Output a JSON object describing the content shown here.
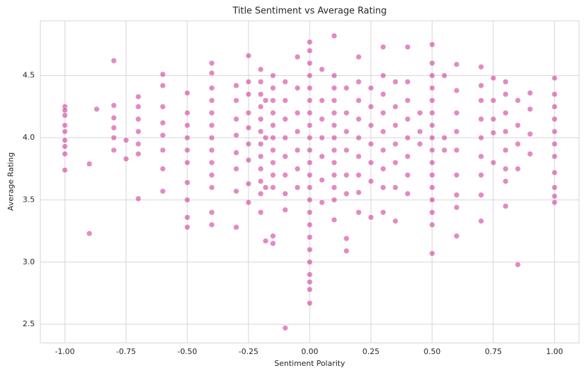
{
  "chart_data": {
    "type": "scatter",
    "title": "Title Sentiment vs Average Rating",
    "x_label": "Sentiment Polarity",
    "y_label": "Average Rating",
    "color": "#c71585",
    "grid": true,
    "xlim": [
      -1.1,
      1.1
    ],
    "ylim": [
      2.35,
      4.94
    ],
    "xticks": [
      {
        "value": -1,
        "label": "-1.00"
      },
      {
        "value": -0.75,
        "label": "-0.75"
      },
      {
        "value": -0.5,
        "label": "-0.50"
      },
      {
        "value": -0.25,
        "label": "-0.25"
      },
      {
        "value": 0,
        "label": "0.00"
      },
      {
        "value": 0.25,
        "label": "0.25"
      },
      {
        "value": 0.5,
        "label": "0.50"
      },
      {
        "value": 0.75,
        "label": "0.75"
      },
      {
        "value": 1,
        "label": "1.00"
      }
    ],
    "yticks": [
      2.5,
      {
        "value": 3,
        "label": "3.0"
      },
      3.5,
      {
        "value": 4,
        "label": "4.0"
      },
      4.5
    ],
    "x": [
      -1,
      -1,
      -1,
      -1,
      -1,
      -1,
      -1,
      -1,
      -1,
      -0.9,
      -0.9,
      -0.87,
      -0.8,
      -0.8,
      -0.8,
      -0.8,
      -0.8,
      -0.8,
      -0.75,
      -0.75,
      -0.7,
      -0.7,
      -0.7,
      -0.7,
      -0.7,
      -0.7,
      -0.7,
      -0.6,
      -0.6,
      -0.6,
      -0.6,
      -0.6,
      -0.6,
      -0.6,
      -0.6,
      -0.5,
      -0.5,
      -0.5,
      -0.5,
      -0.5,
      -0.5,
      -0.5,
      -0.5,
      -0.5,
      -0.5,
      -0.4,
      -0.4,
      -0.4,
      -0.4,
      -0.4,
      -0.4,
      -0.4,
      -0.4,
      -0.4,
      -0.4,
      -0.4,
      -0.4,
      -0.4,
      -0.3,
      -0.3,
      -0.3,
      -0.3,
      -0.3,
      -0.3,
      -0.3,
      -0.3,
      -0.25,
      -0.25,
      -0.25,
      -0.25,
      -0.25,
      -0.25,
      -0.25,
      -0.25,
      -0.25,
      -0.2,
      -0.2,
      -0.2,
      -0.2,
      -0.2,
      -0.2,
      -0.2,
      -0.2,
      -0.2,
      -0.2,
      -0.2,
      -0.2,
      -0.18,
      -0.18,
      -0.18,
      -0.18,
      -0.15,
      -0.15,
      -0.15,
      -0.15,
      -0.15,
      -0.15,
      -0.15,
      -0.15,
      -0.15,
      -0.15,
      -0.15,
      -0.15,
      -0.1,
      -0.1,
      -0.1,
      -0.1,
      -0.1,
      -0.1,
      -0.1,
      -0.1,
      -0.1,
      -0.05,
      -0.05,
      -0.05,
      -0.05,
      -0.05,
      -0.05,
      -0.05,
      0,
      0,
      0,
      0,
      0,
      0,
      0,
      0,
      0,
      0,
      0,
      0,
      0,
      0,
      0,
      0,
      0,
      0,
      0,
      0,
      0,
      0,
      0,
      0.05,
      0.05,
      0.05,
      0.05,
      0.05,
      0.05,
      0.05,
      0.1,
      0.1,
      0.1,
      0.1,
      0.1,
      0.1,
      0.1,
      0.1,
      0.1,
      0.1,
      0.1,
      0.1,
      0.1,
      0.15,
      0.15,
      0.15,
      0.15,
      0.15,
      0.15,
      0.15,
      0.15,
      0.2,
      0.2,
      0.2,
      0.2,
      0.2,
      0.2,
      0.2,
      0.2,
      0.2,
      0.25,
      0.25,
      0.25,
      0.25,
      0.25,
      0.25,
      0.25,
      0.3,
      0.3,
      0.3,
      0.3,
      0.3,
      0.3,
      0.3,
      0.3,
      0.3,
      0.35,
      0.35,
      0.35,
      0.35,
      0.35,
      0.35,
      0.35,
      0.4,
      0.4,
      0.4,
      0.4,
      0.4,
      0.4,
      0.4,
      0.4,
      0.45,
      0.45,
      0.45,
      0.5,
      0.5,
      0.5,
      0.5,
      0.5,
      0.5,
      0.5,
      0.5,
      0.5,
      0.5,
      0.5,
      0.5,
      0.5,
      0.5,
      0.5,
      0.5,
      0.55,
      0.55,
      0.55,
      0.6,
      0.6,
      0.6,
      0.6,
      0.6,
      0.6,
      0.6,
      0.6,
      0.6,
      0.7,
      0.7,
      0.7,
      0.7,
      0.7,
      0.7,
      0.7,
      0.7,
      0.7,
      0.75,
      0.75,
      0.75,
      0.75,
      0.75,
      0.8,
      0.8,
      0.8,
      0.8,
      0.8,
      0.8,
      0.8,
      0.8,
      0.85,
      0.85,
      0.85,
      0.85,
      0.85,
      0.9,
      0.9,
      0.9,
      0.9,
      1,
      1,
      1,
      1,
      1,
      1,
      1,
      1,
      1,
      1,
      1
    ],
    "values": [
      4.25,
      4.22,
      4.18,
      4.1,
      4.05,
      3.98,
      3.93,
      3.87,
      3.74,
      3.79,
      3.23,
      4.23,
      4.62,
      4.26,
      4.16,
      4.08,
      4.0,
      3.9,
      3.98,
      3.83,
      4.33,
      4.25,
      4.15,
      4.05,
      3.95,
      3.87,
      3.51,
      4.51,
      4.42,
      4.25,
      4.12,
      4.02,
      3.9,
      3.75,
      3.57,
      4.36,
      4.2,
      4.1,
      4.0,
      3.9,
      3.8,
      3.64,
      3.5,
      3.36,
      3.28,
      4.6,
      4.52,
      4.4,
      4.3,
      4.2,
      4.1,
      4.0,
      3.9,
      3.8,
      3.7,
      3.6,
      3.4,
      3.3,
      4.42,
      4.3,
      4.15,
      4.02,
      3.88,
      3.75,
      3.57,
      3.28,
      4.66,
      4.45,
      4.35,
      4.2,
      4.08,
      3.95,
      3.82,
      3.63,
      3.48,
      4.55,
      4.45,
      4.35,
      4.25,
      4.15,
      4.05,
      3.95,
      3.85,
      3.75,
      3.65,
      3.55,
      3.4,
      3.17,
      3.6,
      4.3,
      4.0,
      4.5,
      4.4,
      4.3,
      4.2,
      4.1,
      4.0,
      3.9,
      3.8,
      3.7,
      3.6,
      3.15,
      3.21,
      4.45,
      4.3,
      4.15,
      4.0,
      3.85,
      3.7,
      3.55,
      3.42,
      2.47,
      4.65,
      4.4,
      4.2,
      4.05,
      3.9,
      3.75,
      3.6,
      4.77,
      4.7,
      4.6,
      4.5,
      4.4,
      4.3,
      4.2,
      4.1,
      4.0,
      3.9,
      3.8,
      3.7,
      3.6,
      3.5,
      3.4,
      3.3,
      3.2,
      3.1,
      3.0,
      2.9,
      2.84,
      2.78,
      2.67,
      4.55,
      4.3,
      4.15,
      4.0,
      3.85,
      3.66,
      3.48,
      4.82,
      4.5,
      4.4,
      4.3,
      4.2,
      4.1,
      4.0,
      3.9,
      3.8,
      3.7,
      3.6,
      3.5,
      3.34,
      4.4,
      4.2,
      4.05,
      3.9,
      3.7,
      3.55,
      3.19,
      3.09,
      4.65,
      4.45,
      4.3,
      4.15,
      4.0,
      3.85,
      3.7,
      3.56,
      3.4,
      4.4,
      4.25,
      4.1,
      3.95,
      3.8,
      3.65,
      3.36,
      4.73,
      4.5,
      4.35,
      4.2,
      4.05,
      3.9,
      3.75,
      3.6,
      3.4,
      4.45,
      4.25,
      4.1,
      3.95,
      3.8,
      3.6,
      3.33,
      4.73,
      4.45,
      4.3,
      4.15,
      4.0,
      3.85,
      3.7,
      3.55,
      4.2,
      4.05,
      3.95,
      4.75,
      4.6,
      4.5,
      4.4,
      4.3,
      4.2,
      4.1,
      4.0,
      3.9,
      3.8,
      3.7,
      3.6,
      3.5,
      3.4,
      3.3,
      3.07,
      4.5,
      4.0,
      3.9,
      4.59,
      4.38,
      4.2,
      4.05,
      3.9,
      3.7,
      3.54,
      3.44,
      3.21,
      4.57,
      4.42,
      4.3,
      4.15,
      4.0,
      3.85,
      3.7,
      3.54,
      3.33,
      4.48,
      4.3,
      4.15,
      4.04,
      3.8,
      4.45,
      4.35,
      4.2,
      4.05,
      3.9,
      3.75,
      3.65,
      3.45,
      4.3,
      4.1,
      3.95,
      3.75,
      2.98,
      4.36,
      4.23,
      4.03,
      3.87,
      4.48,
      4.35,
      4.25,
      4.15,
      4.05,
      3.95,
      3.85,
      3.72,
      3.6,
      3.53,
      3.48
    ]
  }
}
